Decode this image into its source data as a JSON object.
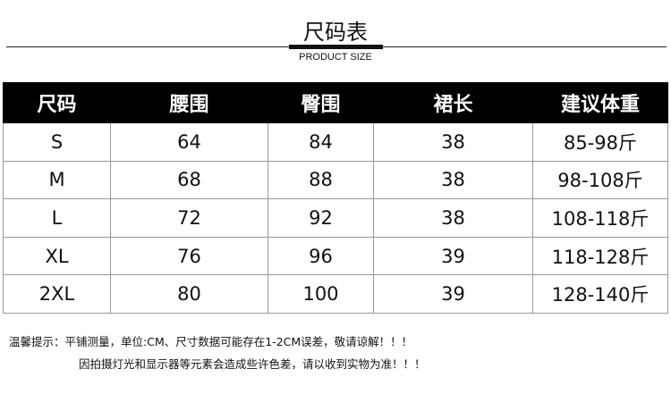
{
  "title": "尺码表",
  "subtitle": "PRODUCT SIZE",
  "table": {
    "headers": [
      "尺码",
      "腰围",
      "臀围",
      "裙长",
      "建议体重"
    ],
    "rows": [
      [
        "S",
        "64",
        "84",
        "38",
        "85-98斤"
      ],
      [
        "M",
        "68",
        "88",
        "38",
        "98-108斤"
      ],
      [
        "L",
        "72",
        "92",
        "38",
        "108-118斤"
      ],
      [
        "XL",
        "76",
        "96",
        "39",
        "118-128斤"
      ],
      [
        "2XL",
        "80",
        "100",
        "39",
        "128-140斤"
      ]
    ]
  },
  "notes": [
    "温馨提示：平铺测量，单位:CM、尺寸数据可能存在1-2CM误差，敬请谅解！！！",
    "因拍摄灯光和显示器等元素会造成些许色差，请以收到实物为准！！！"
  ]
}
